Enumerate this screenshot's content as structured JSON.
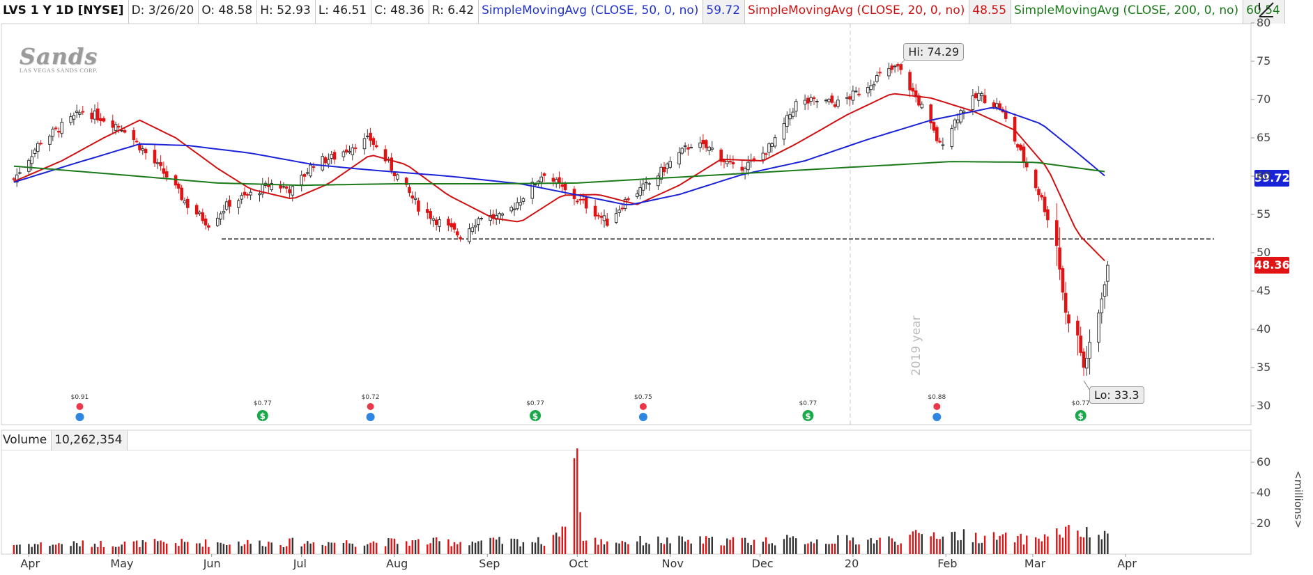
{
  "header": {
    "symbol": "LVS 1 Y 1D [NYSE]",
    "date": "D: 3/26/20",
    "open": "O: 48.58",
    "high": "H: 52.93",
    "low": "L: 46.51",
    "close": "C: 48.36",
    "range": "R: 6.42",
    "sma50_label": "SimpleMovingAvg (CLOSE, 50, 0, no)",
    "sma50_value": "59.72",
    "sma20_label": "SimpleMovingAvg (CLOSE, 20, 0, no)",
    "sma20_value": "48.55",
    "sma200_label": "SimpleMovingAvg (CLOSE, 200, 0, no)",
    "sma200_value": "60.54"
  },
  "logo": {
    "word": "Sands",
    "sub": "LAS VEGAS SANDS CORP."
  },
  "volume": {
    "label": "Volume",
    "value": "10,262,354",
    "unit": "<millions>"
  },
  "callouts": {
    "high": "Hi: 74.29",
    "low": "Lo: 33.3"
  },
  "badges": {
    "sma50": "59.72",
    "close": "48.36"
  },
  "year_marker": "2019 year",
  "colors": {
    "up": "#333333",
    "down": "#e01414",
    "sma20": "#d01010",
    "sma50": "#1a22d8",
    "sma200": "#1a7a1a",
    "divSolid": "#1aa84a",
    "divPending": "#e8384a",
    "earnings": "#2f86e0"
  },
  "chart_data": {
    "type": "candlestick",
    "title": "LVS 1 Y 1D [NYSE]",
    "x": [
      "Apr",
      "May",
      "Jun",
      "Jul",
      "Aug",
      "Sep",
      "Oct",
      "Nov",
      "Dec",
      "20",
      "Feb",
      "Mar",
      "Apr"
    ],
    "price_axis": {
      "ticks": [
        30,
        35,
        40,
        45,
        50,
        55,
        60,
        65,
        70,
        75,
        80
      ],
      "range": [
        28,
        80
      ]
    },
    "volume_axis": {
      "ticks": [
        20,
        40,
        60
      ],
      "range": [
        0,
        70
      ],
      "unit": "<millions>"
    },
    "support_level": 51.8,
    "high": 74.29,
    "low": 33.3,
    "price_path": [
      [
        "2019-03-27",
        59.6
      ],
      [
        "2019-04-05",
        64.6
      ],
      [
        "2019-04-12",
        66.5
      ],
      [
        "2019-04-19",
        68.5
      ],
      [
        "2019-04-26",
        67.5
      ],
      [
        "2019-05-03",
        66.2
      ],
      [
        "2019-05-10",
        63.0
      ],
      [
        "2019-05-17",
        60.0
      ],
      [
        "2019-05-24",
        56.2
      ],
      [
        "2019-05-31",
        53.8
      ],
      [
        "2019-06-07",
        56.5
      ],
      [
        "2019-06-14",
        57.6
      ],
      [
        "2019-06-21",
        59.0
      ],
      [
        "2019-06-28",
        58.2
      ],
      [
        "2019-07-05",
        61.7
      ],
      [
        "2019-07-12",
        62.5
      ],
      [
        "2019-07-19",
        64.2
      ],
      [
        "2019-07-24",
        64.8
      ],
      [
        "2019-08-02",
        60.0
      ],
      [
        "2019-08-09",
        56.0
      ],
      [
        "2019-08-16",
        54.0
      ],
      [
        "2019-08-23",
        52.2
      ],
      [
        "2019-08-30",
        54.8
      ],
      [
        "2019-09-06",
        54.5
      ],
      [
        "2019-09-13",
        57.4
      ],
      [
        "2019-09-20",
        60.5
      ],
      [
        "2019-09-27",
        58.0
      ],
      [
        "2019-10-04",
        56.2
      ],
      [
        "2019-10-11",
        54.0
      ],
      [
        "2019-10-18",
        57.2
      ],
      [
        "2019-10-25",
        59.0
      ],
      [
        "2019-11-01",
        61.8
      ],
      [
        "2019-11-08",
        64.2
      ],
      [
        "2019-11-15",
        63.5
      ],
      [
        "2019-11-22",
        61.0
      ],
      [
        "2019-11-29",
        61.8
      ],
      [
        "2019-12-06",
        64.5
      ],
      [
        "2019-12-13",
        69.5
      ],
      [
        "2019-12-20",
        69.8
      ],
      [
        "2019-12-27",
        69.5
      ],
      [
        "2020-01-03",
        71.0
      ],
      [
        "2020-01-10",
        73.2
      ],
      [
        "2020-01-16",
        74.2
      ],
      [
        "2020-01-24",
        69.0
      ],
      [
        "2020-01-30",
        64.0
      ],
      [
        "2020-02-06",
        68.5
      ],
      [
        "2020-02-12",
        70.6
      ],
      [
        "2020-02-19",
        69.0
      ],
      [
        "2020-02-26",
        63.0
      ],
      [
        "2020-03-04",
        57.0
      ],
      [
        "2020-03-09",
        51.0
      ],
      [
        "2020-03-12",
        42.0
      ],
      [
        "2020-03-16",
        39.0
      ],
      [
        "2020-03-18",
        35.0
      ],
      [
        "2020-03-23",
        42.0
      ],
      [
        "2020-03-26",
        48.36
      ]
    ],
    "series": [
      {
        "name": "SimpleMovingAvg (CLOSE, 20, 0, no)",
        "points": [
          [
            "2019-03-27",
            59.3
          ],
          [
            "2019-04-12",
            62.0
          ],
          [
            "2019-04-26",
            65.0
          ],
          [
            "2019-05-08",
            67.3
          ],
          [
            "2019-05-20",
            65.0
          ],
          [
            "2019-06-03",
            61.0
          ],
          [
            "2019-06-14",
            58.3
          ],
          [
            "2019-06-28",
            57.0
          ],
          [
            "2019-07-10",
            59.0
          ],
          [
            "2019-07-24",
            62.8
          ],
          [
            "2019-08-05",
            61.5
          ],
          [
            "2019-08-19",
            57.5
          ],
          [
            "2019-09-03",
            54.5
          ],
          [
            "2019-09-12",
            54.0
          ],
          [
            "2019-09-26",
            57.5
          ],
          [
            "2019-10-08",
            57.6
          ],
          [
            "2019-10-21",
            56.3
          ],
          [
            "2019-11-04",
            58.8
          ],
          [
            "2019-11-18",
            62.2
          ],
          [
            "2019-12-02",
            62.0
          ],
          [
            "2019-12-13",
            64.2
          ],
          [
            "2019-12-30",
            68.0
          ],
          [
            "2020-01-14",
            70.8
          ],
          [
            "2020-01-27",
            70.2
          ],
          [
            "2020-02-10",
            68.5
          ],
          [
            "2020-02-24",
            66.0
          ],
          [
            "2020-03-06",
            61.0
          ],
          [
            "2020-03-16",
            52.5
          ],
          [
            "2020-03-26",
            48.55
          ]
        ]
      },
      {
        "name": "SimpleMovingAvg (CLOSE, 50, 0, no)",
        "points": [
          [
            "2019-03-27",
            59.2
          ],
          [
            "2019-04-15",
            61.5
          ],
          [
            "2019-05-08",
            64.2
          ],
          [
            "2019-05-24",
            64.0
          ],
          [
            "2019-06-14",
            63.0
          ],
          [
            "2019-07-05",
            61.5
          ],
          [
            "2019-07-24",
            60.8
          ],
          [
            "2019-08-19",
            60.0
          ],
          [
            "2019-09-12",
            59.0
          ],
          [
            "2019-10-08",
            57.0
          ],
          [
            "2019-10-18",
            56.2
          ],
          [
            "2019-11-04",
            57.6
          ],
          [
            "2019-11-25",
            60.2
          ],
          [
            "2019-12-16",
            62.0
          ],
          [
            "2020-01-06",
            64.8
          ],
          [
            "2020-01-27",
            67.3
          ],
          [
            "2020-02-17",
            69.0
          ],
          [
            "2020-03-04",
            66.8
          ],
          [
            "2020-03-16",
            63.0
          ],
          [
            "2020-03-26",
            59.72
          ]
        ]
      },
      {
        "name": "SimpleMovingAvg (CLOSE, 200, 0, no)",
        "points": [
          [
            "2019-03-27",
            61.3
          ],
          [
            "2019-05-01",
            60.2
          ],
          [
            "2019-06-03",
            59.1
          ],
          [
            "2019-07-01",
            58.8
          ],
          [
            "2019-08-01",
            59.0
          ],
          [
            "2019-09-03",
            59.0
          ],
          [
            "2019-10-01",
            59.1
          ],
          [
            "2019-11-01",
            59.8
          ],
          [
            "2019-12-02",
            60.5
          ],
          [
            "2020-01-02",
            61.2
          ],
          [
            "2020-02-03",
            61.9
          ],
          [
            "2020-03-02",
            61.8
          ],
          [
            "2020-03-26",
            60.54
          ]
        ]
      }
    ],
    "volume_path": [
      [
        "2019-03-27",
        6
      ],
      [
        "2019-05-30",
        7
      ],
      [
        "2019-09-20",
        8
      ],
      [
        "2019-09-26",
        18
      ],
      [
        "2019-10-01",
        69
      ],
      [
        "2019-10-03",
        8
      ],
      [
        "2020-01-15",
        9
      ],
      [
        "2020-01-28",
        13
      ],
      [
        "2020-02-28",
        9
      ],
      [
        "2020-03-13",
        14
      ],
      [
        "2020-03-26",
        10.3
      ]
    ],
    "events": [
      {
        "date": "2019-04-18",
        "type": "earnings",
        "label": "$0.91"
      },
      {
        "date": "2019-06-18",
        "type": "dividend",
        "label": "$0.77"
      },
      {
        "date": "2019-07-24",
        "type": "earnings",
        "label": "$0.72"
      },
      {
        "date": "2019-09-17",
        "type": "dividend",
        "label": "$0.77"
      },
      {
        "date": "2019-10-23",
        "type": "earnings",
        "label": "$0.75"
      },
      {
        "date": "2019-12-17",
        "type": "dividend",
        "label": "$0.77"
      },
      {
        "date": "2020-01-29",
        "type": "earnings",
        "label": "$0.88"
      },
      {
        "date": "2020-03-17",
        "type": "dividend",
        "label": "$0.77"
      }
    ]
  }
}
